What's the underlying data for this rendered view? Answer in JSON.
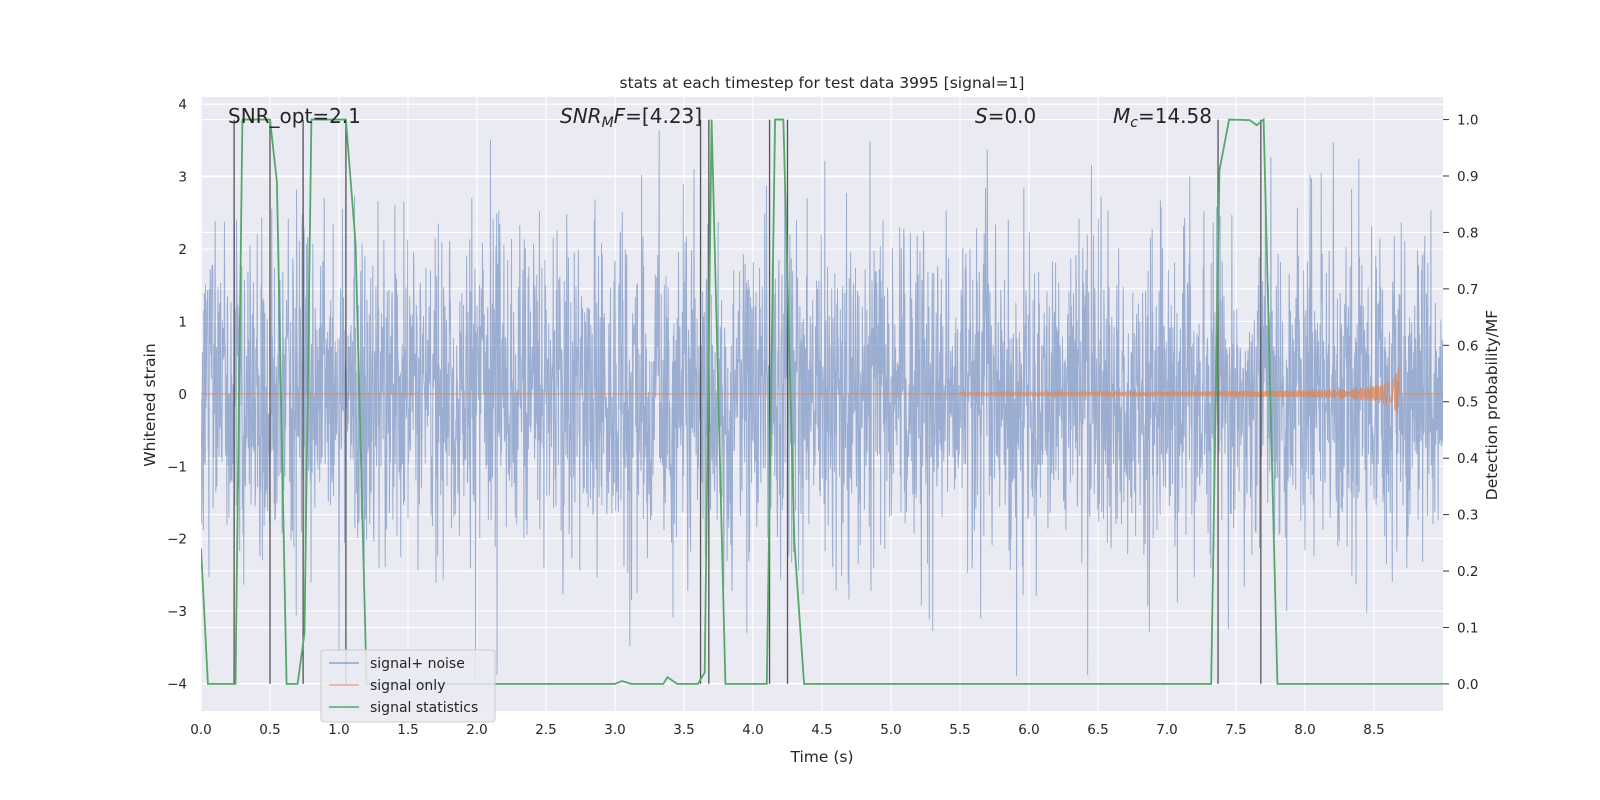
{
  "chart_data": {
    "type": "line",
    "title": "stats at each timestep for test data 3995 [signal=1]",
    "xlabel": "Time (s)",
    "ylabel": "Whitened strain",
    "y2label": "Detection probability/MF",
    "xlim": [
      0.0,
      9.0
    ],
    "ylim": [
      -4.38,
      4.1
    ],
    "y2lim": [
      -0.048,
      1.04
    ],
    "xticks": [
      0.0,
      0.5,
      1.0,
      1.5,
      2.0,
      2.5,
      3.0,
      3.5,
      4.0,
      4.5,
      5.0,
      5.5,
      6.0,
      6.5,
      7.0,
      7.5,
      8.0,
      8.5
    ],
    "xtick_labels": [
      "0.0",
      "0.5",
      "1.0",
      "1.5",
      "2.0",
      "2.5",
      "3.0",
      "3.5",
      "4.0",
      "4.5",
      "5.0",
      "5.5",
      "6.0",
      "6.5",
      "7.0",
      "7.5",
      "8.0",
      "8.5"
    ],
    "yticks": [
      -4,
      -3,
      -2,
      -1,
      0,
      1,
      2,
      3,
      4
    ],
    "ytick_labels": [
      "−4",
      "−3",
      "−2",
      "−1",
      "0",
      "1",
      "2",
      "3",
      "4"
    ],
    "y2ticks": [
      0.0,
      0.1,
      0.2,
      0.3,
      0.4,
      0.5,
      0.6,
      0.7,
      0.8,
      0.9,
      1.0
    ],
    "y2tick_labels": [
      "0.0",
      "0.1",
      "0.2",
      "0.3",
      "0.4",
      "0.5",
      "0.6",
      "0.7",
      "0.8",
      "0.9",
      "1.0"
    ],
    "grid": true,
    "annotations": {
      "snr_opt": "SNR_opt=2.1",
      "snr_mf_sym": "SNR",
      "snr_mf_sub": "M",
      "snr_mf_rest": "F=[4.23]",
      "s_sym": "S",
      "s_rest": "=0.0",
      "mc_sym": "M",
      "mc_sub": "c",
      "mc_rest": "=14.58"
    },
    "legend": {
      "position": "lower-left",
      "entries": [
        "signal+ noise",
        "signal only",
        "signal statistics"
      ]
    },
    "series": [
      {
        "name": "signal+ noise",
        "color": "#4c72b0",
        "style": "dense noise, approx. unit variance, spikes to about ±3.8",
        "seed": 3995,
        "sigma": 0.95
      },
      {
        "name": "signal only",
        "color": "#dd8452",
        "chirp_start": 5.5,
        "chirp_end": 8.68,
        "chirp_peak_amplitude": 0.45
      },
      {
        "name": "signal statistics",
        "color": "#55a868",
        "x": [
          0.0,
          0.05,
          0.25,
          0.3,
          0.5,
          0.55,
          0.62,
          0.7,
          0.75,
          0.8,
          1.05,
          1.12,
          1.2,
          1.25,
          3.0,
          3.05,
          3.12,
          3.35,
          3.38,
          3.45,
          3.6,
          3.65,
          3.7,
          3.8,
          4.1,
          4.16,
          4.22,
          4.3,
          4.37,
          7.32,
          7.38,
          7.45,
          7.6,
          7.65,
          7.7,
          7.8,
          8.5,
          9.0
        ],
        "y": [
          0.24,
          0.0,
          0.0,
          1.0,
          1.0,
          0.89,
          0.0,
          0.0,
          0.09,
          1.0,
          1.0,
          0.78,
          0.0,
          0.0,
          0.0,
          0.005,
          0.0,
          0.0,
          0.012,
          0.0,
          0.0,
          0.02,
          1.0,
          0.0,
          0.0,
          1.0,
          1.0,
          0.25,
          0.0,
          0.0,
          0.91,
          1.0,
          0.999,
          0.99,
          1.0,
          0.0,
          0.0,
          0.0
        ]
      }
    ],
    "vlines": {
      "color": "#555555",
      "x": [
        0.24,
        0.5,
        0.74,
        1.05,
        3.62,
        3.68,
        4.12,
        4.25,
        7.37,
        7.68
      ]
    }
  }
}
